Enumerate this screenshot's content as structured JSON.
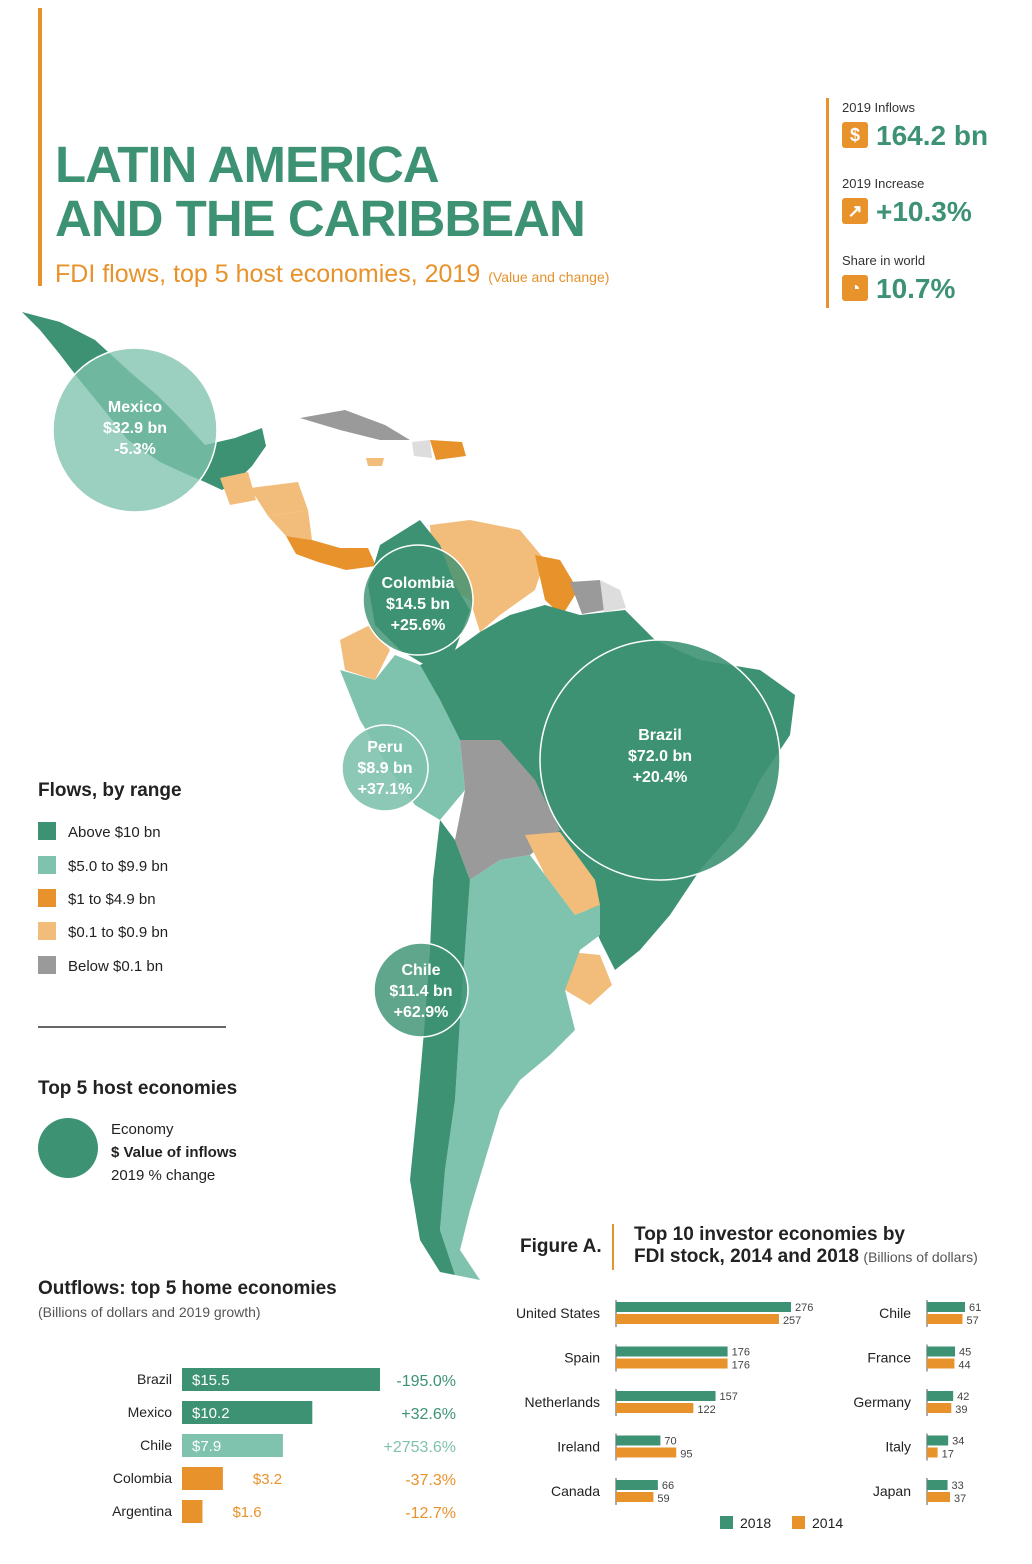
{
  "header": {
    "title_line1": "LATIN AMERICA",
    "title_line2": "AND THE CARIBBEAN",
    "subtitle": "FDI flows, top 5 host economies, 2019",
    "subtitle_note": "(Value and change)"
  },
  "stats": [
    {
      "label": "2019 Inflows",
      "value": "164.2 bn",
      "icon": "dollar-icon",
      "glyph": "$"
    },
    {
      "label": "2019 Increase",
      "value": "+10.3%",
      "icon": "growth-chart-icon",
      "glyph": "↗"
    },
    {
      "label": "Share in world",
      "value": "10.7%",
      "icon": "pie-chart-icon",
      "glyph": "◔"
    }
  ],
  "colors": {
    "above10": "#3d9273",
    "from5to9": "#7fc2ad",
    "from1to4": "#e8922b",
    "from01to09": "#f2bd7b",
    "below01": "#9a9a9a",
    "na": "#dddddd"
  },
  "flows_legend": {
    "title": "Flows, by range",
    "items": [
      {
        "label": "Above $10 bn",
        "color": "#3d9273"
      },
      {
        "label": "$5.0 to $9.9 bn",
        "color": "#7fc2ad"
      },
      {
        "label": "$1 to $4.9 bn",
        "color": "#e8922b"
      },
      {
        "label": "$0.1 to $0.9 bn",
        "color": "#f2bd7b"
      },
      {
        "label": "Below $0.1 bn",
        "color": "#9a9a9a"
      }
    ]
  },
  "top5_legend": {
    "title": "Top 5 host economies",
    "line1": "Economy",
    "line2": "$ Value of inflows",
    "line3": "2019 % change"
  },
  "host_bubbles": [
    {
      "name": "Mexico",
      "value": "$32.9 bn",
      "change": "-5.3%"
    },
    {
      "name": "Colombia",
      "value": "$14.5 bn",
      "change": "+25.6%"
    },
    {
      "name": "Brazil",
      "value": "$72.0 bn",
      "change": "+20.4%"
    },
    {
      "name": "Peru",
      "value": "$8.9 bn",
      "change": "+37.1%"
    },
    {
      "name": "Chile",
      "value": "$11.4 bn",
      "change": "+62.9%"
    }
  ],
  "outflows": {
    "title": "Outflows: top 5 home economies",
    "subtitle": "(Billions of dollars and 2019 growth)"
  },
  "figure_a": {
    "label": "Figure A.",
    "title_line1": "Top 10 investor economies by",
    "title_line2": "FDI stock, 2014 and 2018",
    "title_note": "(Billions of dollars)"
  },
  "chart_data": [
    {
      "type": "bar",
      "title": "Outflows: top 5 home economies",
      "subtitle": "(Billions of dollars and 2019 growth)",
      "categories": [
        "Brazil",
        "Mexico",
        "Chile",
        "Colombia",
        "Argentina"
      ],
      "values": [
        15.5,
        10.2,
        7.9,
        3.2,
        1.6
      ],
      "value_labels": [
        "$15.5",
        "$10.2",
        "$7.9",
        "$3.2",
        "$1.6"
      ],
      "growth_labels": [
        "-195.0%",
        "+32.6%",
        "+2753.6%",
        "-37.3%",
        "-12.7%"
      ],
      "colors": [
        "#3d9273",
        "#3d9273",
        "#7fc2ad",
        "#e8922b",
        "#e8922b"
      ],
      "growth_colors": [
        "#3d9273",
        "#3d9273",
        "#7fc2ad",
        "#e8922b",
        "#e8922b"
      ],
      "orientation": "horizontal"
    },
    {
      "type": "bar",
      "title": "Top 10 investor economies by FDI stock, 2014 and 2018",
      "orientation": "horizontal",
      "categories": [
        "United States",
        "Spain",
        "Netherlands",
        "Ireland",
        "Canada",
        "Chile",
        "France",
        "Germany",
        "Italy",
        "Japan"
      ],
      "series": [
        {
          "name": "2018",
          "color": "#3d9273",
          "values": [
            276,
            176,
            157,
            70,
            66,
            61,
            45,
            42,
            34,
            33
          ]
        },
        {
          "name": "2014",
          "color": "#e8922b",
          "values": [
            257,
            176,
            122,
            95,
            59,
            57,
            44,
            39,
            17,
            37
          ]
        }
      ],
      "legend": "bottom"
    }
  ]
}
